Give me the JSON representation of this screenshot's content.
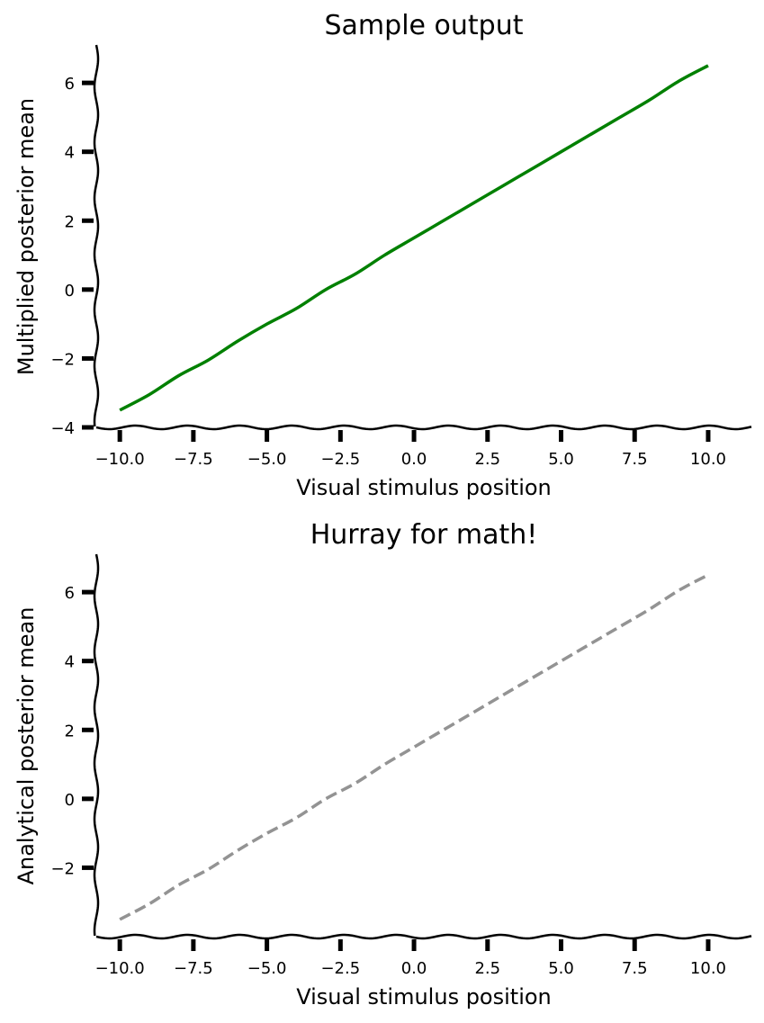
{
  "chart_data": [
    {
      "type": "line",
      "title": "Sample output",
      "xlabel": "Visual stimulus position",
      "ylabel": "Multiplied posterior mean",
      "xlim": [
        -10.8,
        11.5
      ],
      "ylim": [
        -4.0,
        7.1
      ],
      "xticks": [
        -10.0,
        -7.5,
        -5.0,
        -2.5,
        0.0,
        2.5,
        5.0,
        7.5,
        10.0
      ],
      "xtick_labels": [
        "−10.0",
        "−7.5",
        "−5.0",
        "−2.5",
        "0.0",
        "2.5",
        "5.0",
        "7.5",
        "10.0"
      ],
      "yticks": [
        -4,
        -2,
        0,
        2,
        4,
        6
      ],
      "ytick_labels": [
        "−4",
        "−2",
        "0",
        "2",
        "4",
        "6"
      ],
      "grid": false,
      "series": [
        {
          "color": "#008000",
          "dashed": false,
          "x": [
            -10,
            -9,
            -8,
            -7,
            -6,
            -5,
            -4,
            -3,
            -2,
            -1,
            0,
            1,
            2,
            3,
            4,
            5,
            6,
            7,
            8,
            9,
            10
          ],
          "y": [
            -3.5,
            -3.05,
            -2.5,
            -2.05,
            -1.5,
            -1.0,
            -0.55,
            0.0,
            0.45,
            1.0,
            1.5,
            2.0,
            2.5,
            3.0,
            3.5,
            4.0,
            4.5,
            5.0,
            5.5,
            6.05,
            6.5
          ]
        }
      ]
    },
    {
      "type": "line",
      "title": "Hurray for math!",
      "xlabel": "Visual stimulus position",
      "ylabel": "Analytical posterior mean",
      "xlim": [
        -10.8,
        11.5
      ],
      "ylim": [
        -4.0,
        7.1
      ],
      "xticks": [
        -10.0,
        -7.5,
        -5.0,
        -2.5,
        0.0,
        2.5,
        5.0,
        7.5,
        10.0
      ],
      "xtick_labels": [
        "−10.0",
        "−7.5",
        "−5.0",
        "−2.5",
        "0.0",
        "2.5",
        "5.0",
        "7.5",
        "10.0"
      ],
      "yticks": [
        -2,
        0,
        2,
        4,
        6
      ],
      "ytick_labels": [
        "−2",
        "0",
        "2",
        "4",
        "6"
      ],
      "grid": false,
      "series": [
        {
          "color": "#939393",
          "dashed": true,
          "x": [
            -10,
            -9,
            -8,
            -7,
            -6,
            -5,
            -4,
            -3,
            -2,
            -1,
            0,
            1,
            2,
            3,
            4,
            5,
            6,
            7,
            8,
            9,
            10
          ],
          "y": [
            -3.5,
            -3.05,
            -2.5,
            -2.05,
            -1.5,
            -1.0,
            -0.55,
            0.0,
            0.45,
            1.0,
            1.5,
            2.0,
            2.5,
            3.0,
            3.5,
            4.0,
            4.5,
            5.0,
            5.5,
            6.05,
            6.5
          ]
        }
      ]
    }
  ]
}
